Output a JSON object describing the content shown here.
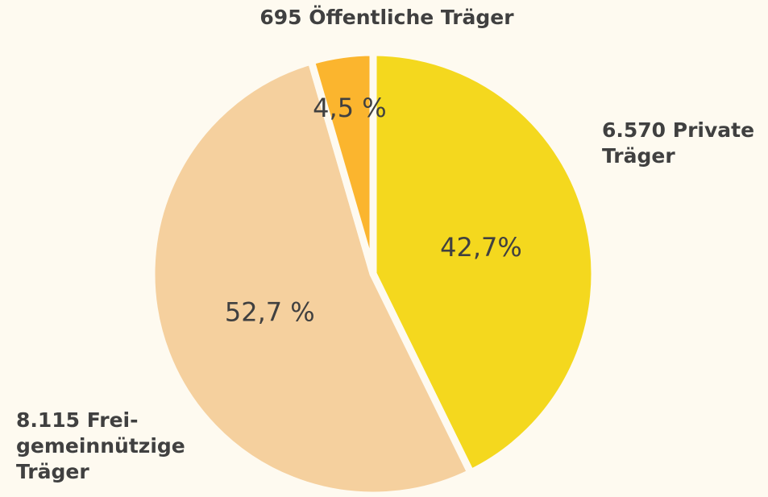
{
  "chart_data": {
    "type": "pie",
    "categories": [
      "6.570 Private Träger",
      "8.115 Frei-gemeinnützige Träger",
      "695 Öffentliche Träger"
    ],
    "values": [
      42.7,
      52.7,
      4.5
    ],
    "value_labels": [
      "42,7%",
      "52,7 %",
      "4,5 %"
    ],
    "colors": [
      "#f4d81e",
      "#f5d09e",
      "#fbb52e"
    ]
  }
}
